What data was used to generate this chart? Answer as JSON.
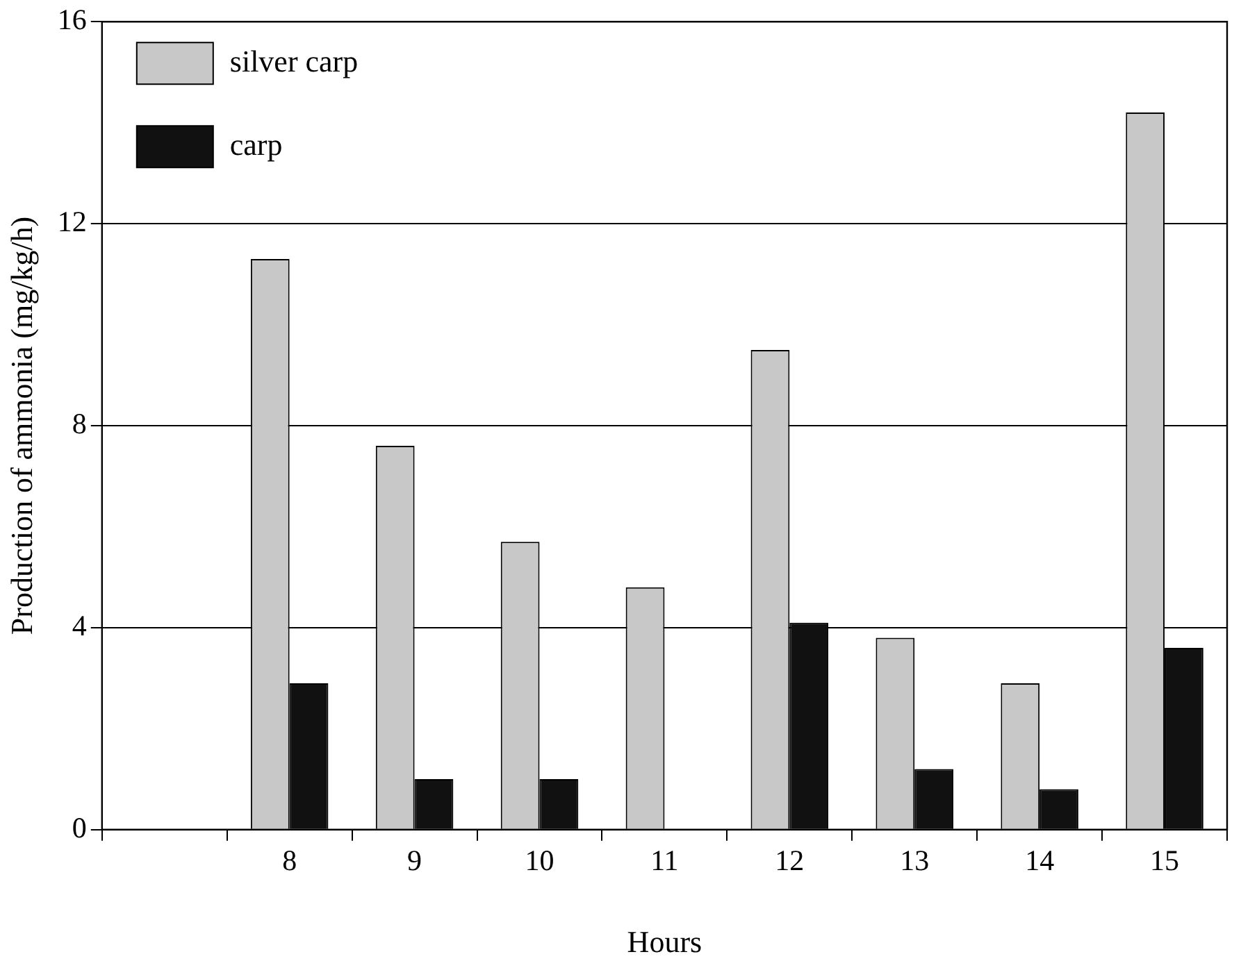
{
  "chart_data": {
    "type": "bar",
    "xlabel": "Hours",
    "ylabel": "Production of ammonia (mg/kg/h)",
    "categories": [
      null,
      "8",
      "9",
      "10",
      "11",
      "12",
      "13",
      "14",
      "15"
    ],
    "series": [
      {
        "name": "silver carp",
        "color": "#c8c8c8",
        "values": [
          null,
          11.3,
          7.6,
          5.7,
          4.8,
          9.5,
          3.8,
          2.9,
          14.2
        ]
      },
      {
        "name": "carp",
        "color": "#111111",
        "values": [
          null,
          2.9,
          1.0,
          1.0,
          null,
          4.1,
          1.2,
          0.8,
          3.6
        ]
      }
    ],
    "ylim": [
      0,
      16
    ],
    "yticks": [
      0,
      4,
      8,
      12,
      16
    ],
    "grid": "y",
    "legend": "top left"
  }
}
